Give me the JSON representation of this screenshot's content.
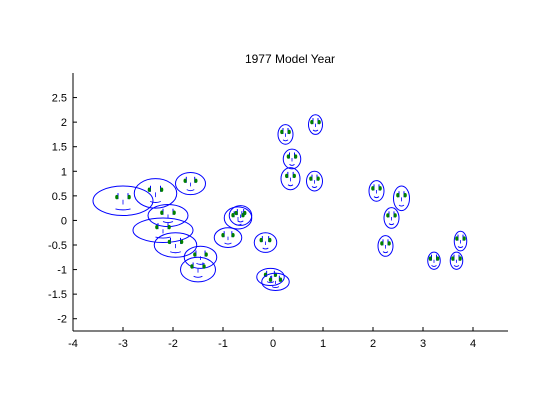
{
  "chart_data": {
    "type": "scatter",
    "marker": "chernoff-face",
    "title": "1977 Model Year",
    "xlabel": "",
    "ylabel": "",
    "xlim": [
      -4,
      4.7
    ],
    "ylim": [
      -2.25,
      3
    ],
    "x_ticks": [
      -4,
      -3,
      -2,
      -1,
      0,
      1,
      2,
      3,
      4
    ],
    "x_tick_labels": [
      "-4",
      "-3",
      "-2",
      "-1",
      "0",
      "1",
      "2",
      "3",
      "4"
    ],
    "y_ticks": [
      -2,
      -1.5,
      -1,
      -0.5,
      0,
      0.5,
      1,
      1.5,
      2,
      2.5
    ],
    "y_tick_labels": [
      "-2",
      "-1.5",
      "-1",
      "-0.5",
      "0",
      "0.5",
      "1",
      "1.5",
      "2",
      "2.5"
    ],
    "grid": false,
    "box": "left-bottom",
    "colors": {
      "face": "#0000ff",
      "eyes": "#008000",
      "axis": "#000000"
    },
    "points": [
      {
        "x": -3.0,
        "y": 0.4,
        "w": 1.2,
        "h": 0.6
      },
      {
        "x": -2.35,
        "y": 0.55,
        "w": 0.85,
        "h": 0.6
      },
      {
        "x": -1.65,
        "y": 0.75,
        "w": 0.6,
        "h": 0.45
      },
      {
        "x": -2.1,
        "y": 0.1,
        "w": 0.8,
        "h": 0.45
      },
      {
        "x": -2.2,
        "y": -0.2,
        "w": 1.2,
        "h": 0.5
      },
      {
        "x": -1.95,
        "y": -0.5,
        "w": 0.85,
        "h": 0.5
      },
      {
        "x": -1.45,
        "y": -0.75,
        "w": 0.65,
        "h": 0.45
      },
      {
        "x": -1.5,
        "y": -1.0,
        "w": 0.7,
        "h": 0.5
      },
      {
        "x": -0.9,
        "y": -0.35,
        "w": 0.55,
        "h": 0.4
      },
      {
        "x": -0.7,
        "y": 0.05,
        "w": 0.55,
        "h": 0.45
      },
      {
        "x": -0.65,
        "y": 0.1,
        "w": 0.45,
        "h": 0.4
      },
      {
        "x": -0.15,
        "y": -0.45,
        "w": 0.45,
        "h": 0.4
      },
      {
        "x": -0.05,
        "y": -1.15,
        "w": 0.55,
        "h": 0.35
      },
      {
        "x": 0.05,
        "y": -1.25,
        "w": 0.55,
        "h": 0.35
      },
      {
        "x": 0.25,
        "y": 1.75,
        "w": 0.3,
        "h": 0.4
      },
      {
        "x": 0.85,
        "y": 1.95,
        "w": 0.28,
        "h": 0.4
      },
      {
        "x": 0.38,
        "y": 1.25,
        "w": 0.35,
        "h": 0.4
      },
      {
        "x": 0.35,
        "y": 0.85,
        "w": 0.38,
        "h": 0.45
      },
      {
        "x": 0.83,
        "y": 0.8,
        "w": 0.32,
        "h": 0.4
      },
      {
        "x": 2.07,
        "y": 0.6,
        "w": 0.3,
        "h": 0.42
      },
      {
        "x": 2.57,
        "y": 0.45,
        "w": 0.32,
        "h": 0.5
      },
      {
        "x": 2.37,
        "y": 0.05,
        "w": 0.3,
        "h": 0.42
      },
      {
        "x": 2.25,
        "y": -0.52,
        "w": 0.3,
        "h": 0.42
      },
      {
        "x": 3.22,
        "y": -0.82,
        "w": 0.25,
        "h": 0.35
      },
      {
        "x": 3.67,
        "y": -0.82,
        "w": 0.25,
        "h": 0.35
      },
      {
        "x": 3.75,
        "y": -0.42,
        "w": 0.25,
        "h": 0.4
      }
    ]
  }
}
